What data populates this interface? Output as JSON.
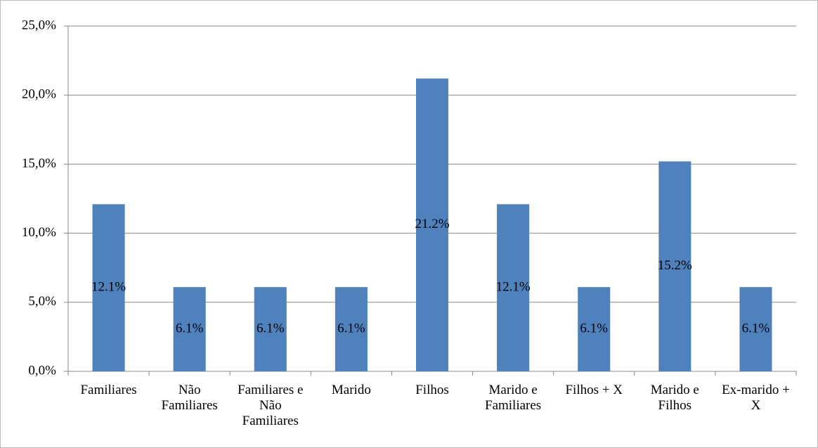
{
  "chart_data": {
    "type": "bar",
    "categories": [
      "Familiares",
      "Não Familiares",
      "Familiares e Não Familiares",
      "Marido",
      "Filhos",
      "Marido e Familiares",
      "Filhos + X",
      "Marido e Filhos",
      "Ex-marido + X"
    ],
    "values": [
      12.1,
      6.1,
      6.1,
      6.1,
      21.2,
      12.1,
      6.1,
      15.2,
      6.1
    ],
    "value_labels": [
      "12.1%",
      "6.1%",
      "6.1%",
      "6.1%",
      "21.2%",
      "12.1%",
      "6.1%",
      "15.2%",
      "6.1%"
    ],
    "color": "#4f81bd",
    "ylim": [
      0,
      25
    ],
    "yticks": [
      {
        "value": 0,
        "label": "0,0%"
      },
      {
        "value": 5,
        "label": "5,0%"
      },
      {
        "value": 10,
        "label": "10,0%"
      },
      {
        "value": 15,
        "label": "15,0%"
      },
      {
        "value": 20,
        "label": "20,0%"
      },
      {
        "value": 25,
        "label": "25,0%"
      }
    ],
    "grid": true
  }
}
